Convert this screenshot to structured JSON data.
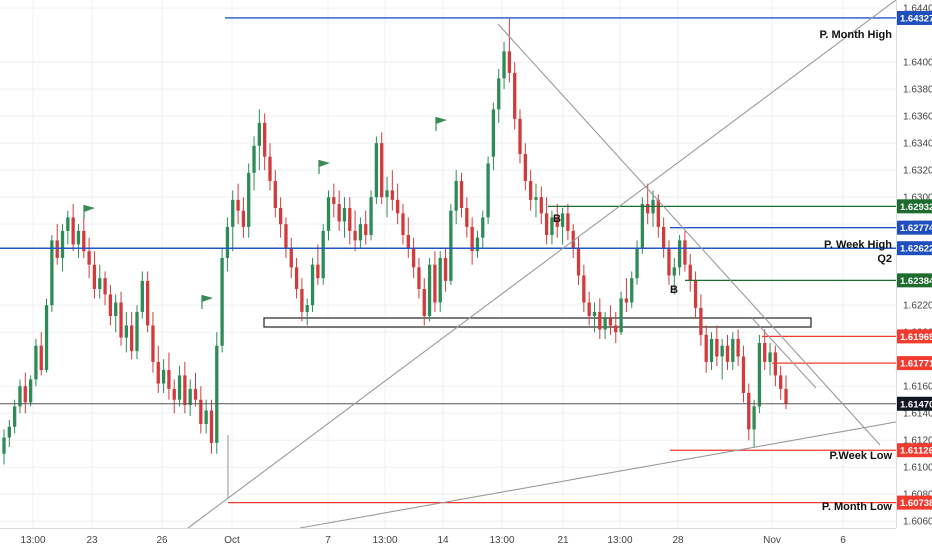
{
  "colors": {
    "bull": "#2e8b57",
    "bear": "#d23b3b",
    "grid": "#eef0f3",
    "blue_level": "#2156c5",
    "green_level": "#1e6b2e",
    "red_level": "#f23b2e",
    "trend": "#9a9a9a",
    "current": "#333333",
    "flag": "#3a8a55"
  },
  "chart_data": {
    "type": "candlestick",
    "ylim": [
      1.6055,
      1.6446
    ],
    "y_ticks": [
      "1.64400",
      "1.64000",
      "1.63800",
      "1.63600",
      "1.63400",
      "1.63200",
      "1.63000",
      "1.62800",
      "1.62200",
      "1.62000",
      "1.61600",
      "1.61400",
      "1.61200",
      "1.61000",
      "1.60800",
      "1.60600"
    ],
    "x_ticks": [
      "13:00",
      "23",
      "26",
      "Oct",
      "7",
      "13:00",
      "14",
      "13:00",
      "21",
      "13:00",
      "28",
      "Nov",
      "6"
    ],
    "price_tags": [
      {
        "value": "1.64327",
        "style": "blue"
      },
      {
        "value": "1.62932",
        "style": "green"
      },
      {
        "value": "1.62774",
        "style": "blue"
      },
      {
        "value": "1.62622",
        "style": "blue"
      },
      {
        "value": "1.62384",
        "style": "green"
      },
      {
        "value": "1.61969",
        "style": "red"
      },
      {
        "value": "1.61771",
        "style": "red"
      },
      {
        "value": "1.61470",
        "style": "dark"
      },
      {
        "value": "1.61126",
        "style": "red"
      },
      {
        "value": "1.60738",
        "style": "red"
      }
    ],
    "level_labels": [
      "P. Month High",
      "P. Week High",
      "Q2",
      "P.Week Low",
      "P. Month Low"
    ],
    "markers": [
      "B",
      "B"
    ],
    "candles": [
      [
        1.611,
        1.6128,
        1.6102,
        1.6122
      ],
      [
        1.6122,
        1.6135,
        1.6115,
        1.613
      ],
      [
        1.613,
        1.615,
        1.6125,
        1.6145
      ],
      [
        1.6145,
        1.6165,
        1.614,
        1.616
      ],
      [
        1.616,
        1.617,
        1.614,
        1.6148
      ],
      [
        1.6148,
        1.6168,
        1.6145,
        1.6165
      ],
      [
        1.6165,
        1.6195,
        1.616,
        1.619
      ],
      [
        1.619,
        1.62,
        1.6168,
        1.6172
      ],
      [
        1.6172,
        1.6225,
        1.617,
        1.622
      ],
      [
        1.622,
        1.6272,
        1.6215,
        1.6268
      ],
      [
        1.6268,
        1.628,
        1.625,
        1.6255
      ],
      [
        1.6255,
        1.628,
        1.6245,
        1.6275
      ],
      [
        1.6275,
        1.629,
        1.6265,
        1.6285
      ],
      [
        1.6285,
        1.6295,
        1.626,
        1.6265
      ],
      [
        1.6265,
        1.628,
        1.6255,
        1.6275
      ],
      [
        1.6275,
        1.6285,
        1.6255,
        1.626
      ],
      [
        1.626,
        1.627,
        1.624,
        1.625
      ],
      [
        1.625,
        1.626,
        1.6225,
        1.6232
      ],
      [
        1.6232,
        1.625,
        1.6225,
        1.624
      ],
      [
        1.624,
        1.6245,
        1.622,
        1.6228
      ],
      [
        1.6228,
        1.6235,
        1.6205,
        1.6212
      ],
      [
        1.6212,
        1.6228,
        1.62,
        1.6222
      ],
      [
        1.6222,
        1.623,
        1.619,
        1.6196
      ],
      [
        1.6196,
        1.6215,
        1.6185,
        1.6205
      ],
      [
        1.6205,
        1.6215,
        1.618,
        1.6186
      ],
      [
        1.6186,
        1.622,
        1.618,
        1.6215
      ],
      [
        1.6215,
        1.6245,
        1.621,
        1.6238
      ],
      [
        1.6238,
        1.6245,
        1.62,
        1.6205
      ],
      [
        1.6205,
        1.6215,
        1.617,
        1.6178
      ],
      [
        1.6178,
        1.619,
        1.6155,
        1.6162
      ],
      [
        1.6162,
        1.618,
        1.6155,
        1.6172
      ],
      [
        1.6172,
        1.6185,
        1.615,
        1.6158
      ],
      [
        1.6158,
        1.6165,
        1.614,
        1.615
      ],
      [
        1.615,
        1.6175,
        1.6145,
        1.6168
      ],
      [
        1.6168,
        1.6178,
        1.614,
        1.6146
      ],
      [
        1.6146,
        1.6165,
        1.6138,
        1.6158
      ],
      [
        1.6158,
        1.617,
        1.6145,
        1.615
      ],
      [
        1.615,
        1.616,
        1.6125,
        1.6132
      ],
      [
        1.6132,
        1.615,
        1.6125,
        1.6142
      ],
      [
        1.6142,
        1.615,
        1.611,
        1.6118
      ],
      [
        1.6118,
        1.62,
        1.611,
        1.619
      ],
      [
        1.619,
        1.6262,
        1.6185,
        1.6255
      ],
      [
        1.6255,
        1.6285,
        1.6245,
        1.6278
      ],
      [
        1.6278,
        1.6305,
        1.626,
        1.6298
      ],
      [
        1.6298,
        1.631,
        1.628,
        1.629
      ],
      [
        1.629,
        1.63,
        1.627,
        1.6278
      ],
      [
        1.6278,
        1.6325,
        1.627,
        1.6318
      ],
      [
        1.6318,
        1.6345,
        1.6305,
        1.6338
      ],
      [
        1.6338,
        1.6365,
        1.632,
        1.6355
      ],
      [
        1.6355,
        1.6362,
        1.632,
        1.633
      ],
      [
        1.633,
        1.634,
        1.6305,
        1.6312
      ],
      [
        1.6312,
        1.632,
        1.6285,
        1.6292
      ],
      [
        1.6292,
        1.63,
        1.627,
        1.628
      ],
      [
        1.628,
        1.6285,
        1.6255,
        1.6262
      ],
      [
        1.6262,
        1.627,
        1.624,
        1.6248
      ],
      [
        1.6248,
        1.6255,
        1.6225,
        1.6232
      ],
      [
        1.6232,
        1.624,
        1.6208,
        1.6215
      ],
      [
        1.6215,
        1.6225,
        1.6205,
        1.622
      ],
      [
        1.622,
        1.6255,
        1.6215,
        1.625
      ],
      [
        1.625,
        1.6265,
        1.6235,
        1.624
      ],
      [
        1.624,
        1.628,
        1.6235,
        1.6275
      ],
      [
        1.6275,
        1.6305,
        1.6268,
        1.63
      ],
      [
        1.63,
        1.631,
        1.6285,
        1.6295
      ],
      [
        1.6295,
        1.6305,
        1.6275,
        1.6282
      ],
      [
        1.6282,
        1.63,
        1.627,
        1.6292
      ],
      [
        1.6292,
        1.63,
        1.6265,
        1.6275
      ],
      [
        1.6275,
        1.629,
        1.626,
        1.6268
      ],
      [
        1.6268,
        1.6285,
        1.6262,
        1.628
      ],
      [
        1.628,
        1.629,
        1.6265,
        1.6272
      ],
      [
        1.6272,
        1.6305,
        1.6268,
        1.63
      ],
      [
        1.63,
        1.6345,
        1.6295,
        1.634
      ],
      [
        1.634,
        1.6348,
        1.6295,
        1.63
      ],
      [
        1.63,
        1.6315,
        1.6285,
        1.6305
      ],
      [
        1.6305,
        1.632,
        1.629,
        1.6298
      ],
      [
        1.6298,
        1.631,
        1.628,
        1.6288
      ],
      [
        1.6288,
        1.6295,
        1.6265,
        1.6272
      ],
      [
        1.6272,
        1.6285,
        1.6255,
        1.6262
      ],
      [
        1.6262,
        1.627,
        1.624,
        1.6248
      ],
      [
        1.6248,
        1.6255,
        1.6225,
        1.6232
      ],
      [
        1.6232,
        1.624,
        1.6205,
        1.6212
      ],
      [
        1.6212,
        1.6255,
        1.6208,
        1.625
      ],
      [
        1.625,
        1.626,
        1.6215,
        1.6222
      ],
      [
        1.6222,
        1.626,
        1.6215,
        1.6255
      ],
      [
        1.6255,
        1.6262,
        1.623,
        1.6238
      ],
      [
        1.6238,
        1.6295,
        1.6235,
        1.629
      ],
      [
        1.629,
        1.632,
        1.628,
        1.6312
      ],
      [
        1.6312,
        1.6318,
        1.6285,
        1.6292
      ],
      [
        1.6292,
        1.63,
        1.627,
        1.6278
      ],
      [
        1.6278,
        1.6285,
        1.625,
        1.626
      ],
      [
        1.626,
        1.6275,
        1.6255,
        1.627
      ],
      [
        1.627,
        1.629,
        1.6262,
        1.6285
      ],
      [
        1.6285,
        1.633,
        1.628,
        1.6325
      ],
      [
        1.633,
        1.637,
        1.632,
        1.6365
      ],
      [
        1.6365,
        1.6395,
        1.6355,
        1.6388
      ],
      [
        1.6388,
        1.6415,
        1.638,
        1.6408
      ],
      [
        1.6408,
        1.6432,
        1.6385,
        1.6392
      ],
      [
        1.6392,
        1.64,
        1.635,
        1.6358
      ],
      [
        1.6358,
        1.6365,
        1.6325,
        1.6332
      ],
      [
        1.6332,
        1.634,
        1.6305,
        1.6312
      ],
      [
        1.6312,
        1.632,
        1.629,
        1.6298
      ],
      [
        1.6298,
        1.631,
        1.6285,
        1.63
      ],
      [
        1.63,
        1.6308,
        1.628,
        1.6288
      ],
      [
        1.6288,
        1.63,
        1.6265,
        1.6272
      ],
      [
        1.6272,
        1.629,
        1.6265,
        1.6285
      ],
      [
        1.6285,
        1.6295,
        1.627,
        1.6278
      ],
      [
        1.6278,
        1.6292,
        1.6265,
        1.6288
      ],
      [
        1.6288,
        1.6295,
        1.6268,
        1.6275
      ],
      [
        1.6275,
        1.628,
        1.6255,
        1.6262
      ],
      [
        1.6262,
        1.627,
        1.6235,
        1.6242
      ],
      [
        1.6242,
        1.625,
        1.6215,
        1.6222
      ],
      [
        1.6222,
        1.623,
        1.6205,
        1.6212
      ],
      [
        1.6212,
        1.6222,
        1.62,
        1.6215
      ],
      [
        1.6215,
        1.6225,
        1.6195,
        1.6202
      ],
      [
        1.6202,
        1.6215,
        1.6195,
        1.621
      ],
      [
        1.621,
        1.622,
        1.6198,
        1.6205
      ],
      [
        1.6205,
        1.6215,
        1.6192,
        1.62
      ],
      [
        1.62,
        1.623,
        1.6198,
        1.6225
      ],
      [
        1.6225,
        1.624,
        1.6215,
        1.6222
      ],
      [
        1.6222,
        1.6245,
        1.6218,
        1.624
      ],
      [
        1.624,
        1.6268,
        1.6235,
        1.6262
      ],
      [
        1.6262,
        1.63,
        1.6258,
        1.6295
      ],
      [
        1.6295,
        1.631,
        1.628,
        1.6288
      ],
      [
        1.6288,
        1.6305,
        1.6278,
        1.6298
      ],
      [
        1.6298,
        1.6302,
        1.627,
        1.6278
      ],
      [
        1.6278,
        1.6285,
        1.6255,
        1.6262
      ],
      [
        1.6262,
        1.6268,
        1.6235,
        1.6242
      ],
      [
        1.6242,
        1.6255,
        1.6228,
        1.6248
      ],
      [
        1.6248,
        1.6272,
        1.6242,
        1.6268
      ],
      [
        1.6268,
        1.6275,
        1.6245,
        1.625
      ],
      [
        1.625,
        1.6258,
        1.623,
        1.6238
      ],
      [
        1.6238,
        1.6245,
        1.621,
        1.6218
      ],
      [
        1.6218,
        1.6228,
        1.619,
        1.6198
      ],
      [
        1.6198,
        1.6205,
        1.617,
        1.6178
      ],
      [
        1.6178,
        1.62,
        1.6172,
        1.6195
      ],
      [
        1.6195,
        1.6205,
        1.6175,
        1.6182
      ],
      [
        1.6182,
        1.6195,
        1.6165,
        1.619
      ],
      [
        1.619,
        1.6198,
        1.6172,
        1.6178
      ],
      [
        1.6178,
        1.62,
        1.6172,
        1.6195
      ],
      [
        1.6195,
        1.6202,
        1.6175,
        1.6182
      ],
      [
        1.6182,
        1.619,
        1.6148,
        1.6155
      ],
      [
        1.6155,
        1.6162,
        1.612,
        1.6128
      ],
      [
        1.6128,
        1.615,
        1.6115,
        1.6145
      ],
      [
        1.6145,
        1.6198,
        1.614,
        1.6192
      ],
      [
        1.6192,
        1.6202,
        1.6172,
        1.6178
      ],
      [
        1.6178,
        1.6192,
        1.6168,
        1.6185
      ],
      [
        1.6185,
        1.619,
        1.616,
        1.6168
      ],
      [
        1.6168,
        1.6175,
        1.615,
        1.6158
      ],
      [
        1.6158,
        1.6168,
        1.6143,
        1.6147
      ]
    ]
  }
}
